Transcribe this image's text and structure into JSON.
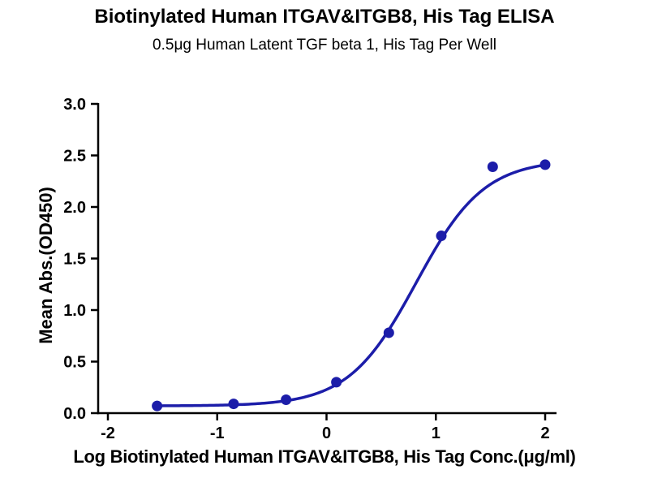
{
  "chart_data": {
    "type": "scatter",
    "title": "Biotinylated Human ITGAV&ITGB8, His Tag ELISA",
    "subtitle": "0.5μg Human Latent TGF beta 1, His Tag Per Well",
    "xlabel": "Log Biotinylated Human ITGAV&ITGB8, His Tag Conc.(μg/ml)",
    "ylabel": "Mean Abs.(OD450)",
    "xlim": [
      -2,
      2
    ],
    "ylim": [
      0,
      3
    ],
    "x_ticks": [
      -2,
      -1,
      0,
      1,
      2
    ],
    "x_tick_labels": [
      "-2",
      "-1",
      "0",
      "1",
      "2"
    ],
    "y_ticks": [
      0,
      0.5,
      1,
      1.5,
      2,
      2.5,
      3
    ],
    "y_tick_labels": [
      "0.0",
      "0.5",
      "1.0",
      "1.5",
      "2.0",
      "2.5",
      "3.0"
    ],
    "grid": false,
    "legend": "none",
    "axis_color": "#000000",
    "series": [
      {
        "name": "Biotinylated Human ITGAV&ITGB8, His Tag",
        "x": [
          -1.55,
          -0.85,
          -0.37,
          0.09,
          0.57,
          1.05,
          1.52,
          2.0
        ],
        "y": [
          0.07,
          0.09,
          0.13,
          0.3,
          0.78,
          1.72,
          2.39,
          2.41
        ],
        "color": "#1c1da9"
      }
    ],
    "fit_curve": {
      "model": "4PL sigmoid",
      "bottom": 0.07,
      "top": 2.46,
      "log_ec50": 0.82,
      "hill": 1.4,
      "x_range": [
        -1.55,
        2.0
      ],
      "color": "#1c1da9"
    }
  }
}
